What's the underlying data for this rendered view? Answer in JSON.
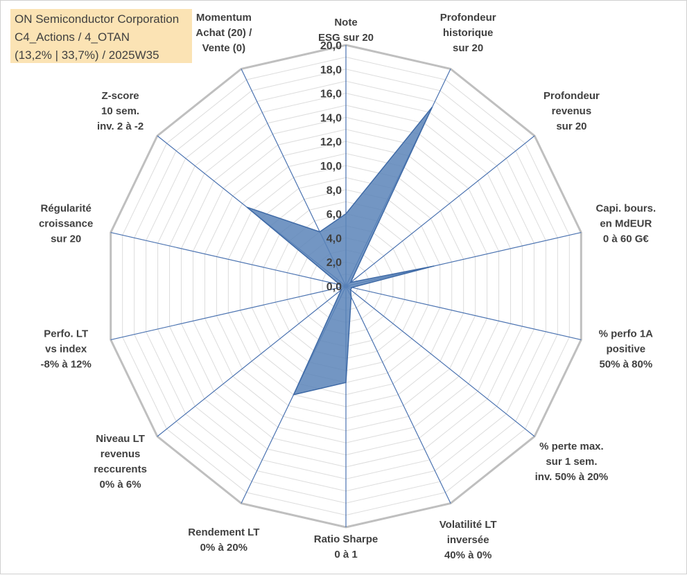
{
  "title_lines": [
    "ON Semiconductor Corporation",
    "C4_Actions / 4_OTAN",
    "(13,2% | 33,7%) / 2025W35"
  ],
  "colors": {
    "series_fill": "#5b84b9",
    "series_stroke": "#3f6aa6",
    "spoke": "#4a72b0",
    "outer_grid": "#bfbfbf",
    "inner_grid": "#dcdcdc",
    "text": "#404040",
    "title_bg": "#fbe3b4"
  },
  "chart_data": {
    "type": "radar",
    "title": "",
    "rlim": [
      0,
      20
    ],
    "tick_labels": [
      "0,0",
      "2,0",
      "4,0",
      "6,0",
      "8,0",
      "10,0",
      "12,0",
      "14,0",
      "16,0",
      "18,0",
      "20,0"
    ],
    "grid": true,
    "axes": [
      {
        "lines": [
          "Note",
          "ESG sur 20"
        ]
      },
      {
        "lines": [
          "Profondeur",
          "historique",
          "sur 20"
        ]
      },
      {
        "lines": [
          "Profondeur",
          "revenus",
          "sur 20"
        ]
      },
      {
        "lines": [
          "Capi. bours.",
          "en MdEUR",
          "0 à 60 G€"
        ]
      },
      {
        "lines": [
          "% perfo 1A",
          "positive",
          "50% à 80%"
        ]
      },
      {
        "lines": [
          "% perte max.",
          "sur 1 sem.",
          "inv. 50% à 20%"
        ]
      },
      {
        "lines": [
          "Volatilité LT",
          "inversée",
          "40% à 0%"
        ]
      },
      {
        "lines": [
          "Ratio Sharpe",
          "0 à 1"
        ]
      },
      {
        "lines": [
          "Rendement LT",
          "0% à 20%"
        ]
      },
      {
        "lines": [
          "Niveau LT",
          "revenus",
          "reccurents",
          "0% à 6%"
        ]
      },
      {
        "lines": [
          "Perfo. LT",
          "vs index",
          "-8% à 12%"
        ]
      },
      {
        "lines": [
          "Régularité",
          "croissance",
          "sur 20"
        ]
      },
      {
        "lines": [
          "Z-score",
          "10 sem.",
          "inv. 2 à -2"
        ]
      },
      {
        "lines": [
          "Momentum",
          "Achat (20) /",
          "Vente (0)"
        ]
      }
    ],
    "series": [
      {
        "values": [
          6.0,
          16.5,
          0.5,
          7.5,
          0.5,
          0.5,
          1.0,
          8.0,
          10.0,
          0.5,
          0.5,
          0.5,
          10.5,
          5.0
        ]
      }
    ]
  }
}
